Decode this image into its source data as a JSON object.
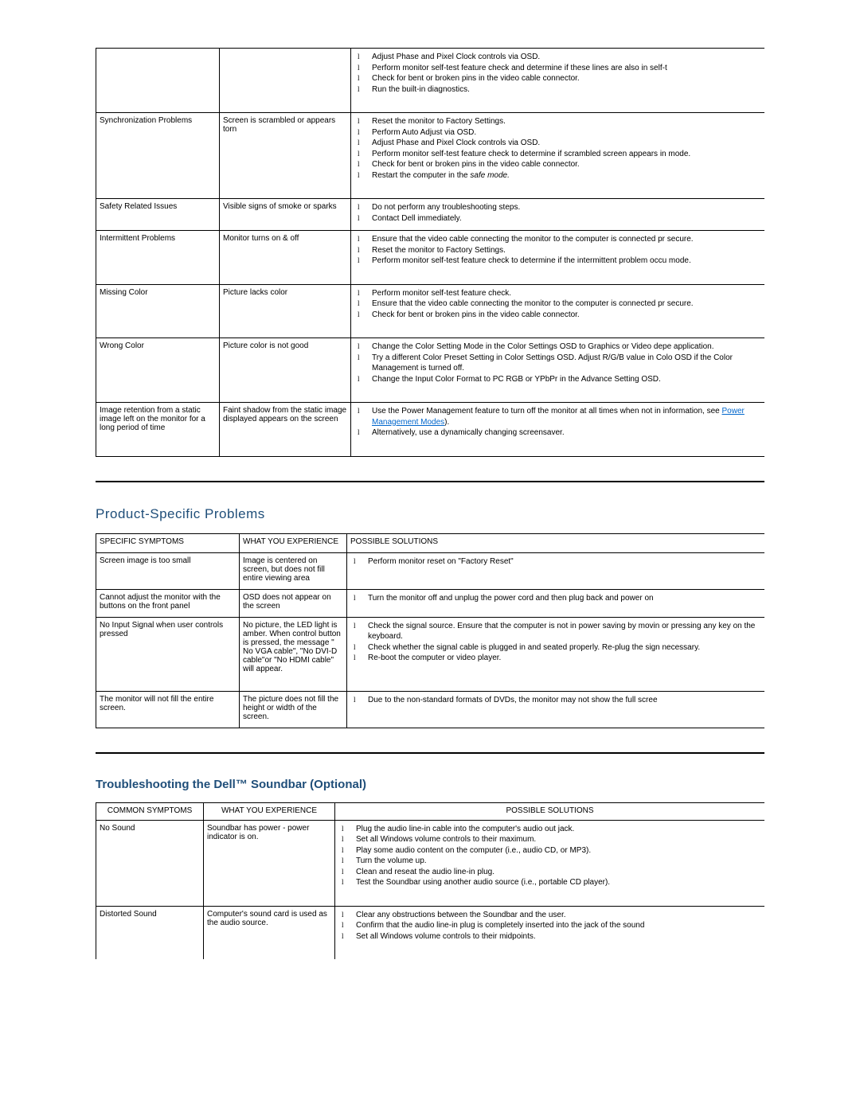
{
  "table1": {
    "col_widths": [
      "155px",
      "165px",
      "auto"
    ],
    "rows": [
      {
        "symptom": "",
        "experience": "",
        "solutions": [
          {
            "text": "Adjust Phase and Pixel Clock controls via OSD."
          },
          {
            "text": "Perform monitor self-test feature check and determine if these lines are also in self-t"
          },
          {
            "text": "Check for bent or broken pins in the video cable connector."
          },
          {
            "text": "Run the built-in diagnostics."
          }
        ]
      },
      {
        "symptom": "Synchronization Problems",
        "experience": "Screen is scrambled or appears torn",
        "solutions": [
          {
            "text": "Reset the monitor to Factory Settings."
          },
          {
            "text": "Perform Auto Adjust via OSD."
          },
          {
            "text": "Adjust Phase and Pixel Clock controls via OSD."
          },
          {
            "text": "Perform monitor self-test feature check to determine if scrambled screen appears in mode."
          },
          {
            "text": "Check for bent or broken pins in the video cable connector."
          },
          {
            "text_pre": "Restart the computer in the ",
            "text_italic": "safe mode.",
            "text_post": ""
          }
        ]
      },
      {
        "symptom": "Safety Related Issues",
        "experience": "Visible signs of smoke or sparks",
        "solutions": [
          {
            "text": "Do not perform any troubleshooting steps."
          },
          {
            "text": "Contact Dell immediately."
          }
        ],
        "short": true
      },
      {
        "symptom": "Intermittent Problems",
        "experience": "Monitor turns on & off",
        "solutions": [
          {
            "text": "Ensure that the video cable connecting the monitor to the computer is connected pr secure."
          },
          {
            "text": "Reset the monitor to Factory Settings."
          },
          {
            "text": "Perform monitor self-test feature check to determine if the intermittent problem occu mode."
          }
        ]
      },
      {
        "symptom": "Missing Color",
        "experience": "Picture lacks color",
        "solutions": [
          {
            "text": "Perform monitor self-test feature check."
          },
          {
            "text": "Ensure that the video cable connecting the monitor to the computer is connected pr secure."
          },
          {
            "text": "Check for bent or broken pins in the video cable connector."
          }
        ]
      },
      {
        "symptom": "Wrong Color",
        "experience": "Picture color is not good",
        "solutions": [
          {
            "text": "Change the Color Setting Mode in the Color Settings OSD to Graphics or Video depe application."
          },
          {
            "text": "Try a different Color Preset Setting in Color Settings OSD. Adjust R/G/B value in Colo OSD if the Color Management is turned off."
          },
          {
            "text": "Change the Input Color Format to PC RGB or YPbPr in the Advance Setting OSD."
          }
        ]
      },
      {
        "symptom": "Image retention from a static image left on the monitor for a long period of time",
        "experience": "Faint shadow from the static image displayed appears on the screen",
        "solutions": [
          {
            "text_pre": "Use the Power Management feature to turn off the monitor at all times when not in information, see ",
            "link": "Power Management Modes",
            "text_post": ")."
          },
          {
            "text": "Alternatively, use a dynamically changing screensaver."
          }
        ]
      }
    ]
  },
  "section2": {
    "title": "Product-Specific Problems",
    "headers": [
      "SPECIFIC SYMPTOMS",
      "WHAT YOU EXPERIENCE",
      "POSSIBLE SOLUTIONS"
    ],
    "rows": [
      {
        "symptom": "Screen image is too small",
        "experience": "Image is centered on screen, but does not fill entire viewing area",
        "solutions": [
          {
            "text": "Perform monitor reset on \"Factory Reset\""
          }
        ],
        "short": true
      },
      {
        "symptom": "Cannot adjust the monitor with the buttons on the front panel",
        "experience": "OSD does not appear on the screen",
        "solutions": [
          {
            "text": "Turn the monitor off and unplug the power cord and then plug back and power on"
          }
        ],
        "short": true
      },
      {
        "symptom": "No Input Signal when user controls pressed",
        "experience": "No picture, the LED light is amber. When control button is pressed, the message \" No VGA cable\", \"No DVI-D cable\"or \"No HDMI cable\" will appear.",
        "solutions": [
          {
            "text": "Check the signal source. Ensure that the computer is not in power saving by movin or pressing any key on the keyboard."
          },
          {
            "text": "Check whether the signal cable is plugged in and seated properly. Re-plug the sign necessary."
          },
          {
            "text": "Re-boot the computer or video player."
          }
        ]
      },
      {
        "symptom": "The monitor will not fill the entire screen.",
        "experience": "The picture does not fill the height or width of the screen.",
        "solutions": [
          {
            "text": "Due to the non-standard formats of DVDs, the monitor may not show the full scree"
          }
        ],
        "short": true
      }
    ]
  },
  "section3": {
    "title": "Troubleshooting the Dell™ Soundbar (Optional)",
    "headers": [
      "COMMON SYMPTOMS",
      "WHAT YOU EXPERIENCE",
      "POSSIBLE SOLUTIONS"
    ],
    "rows": [
      {
        "symptom": "No Sound",
        "experience": "Soundbar has power - power indicator is on.",
        "solutions": [
          {
            "text": "Plug the audio line-in cable into the computer's audio out jack."
          },
          {
            "text": "Set all Windows volume controls to their maximum."
          },
          {
            "text": "Play some audio content on the computer (i.e., audio CD, or MP3)."
          },
          {
            "text": "Turn the volume up."
          },
          {
            "text": "Clean and reseat the audio line-in plug."
          },
          {
            "text": "Test the Soundbar using another audio source (i.e., portable CD player)."
          }
        ]
      },
      {
        "symptom": "Distorted Sound",
        "experience": "Computer's sound card is used as the audio source.",
        "solutions": [
          {
            "text": "Clear any obstructions between the Soundbar and the user."
          },
          {
            "text": "Confirm that the audio line-in plug is completely inserted into the jack of the sound"
          },
          {
            "text": "Set all Windows volume controls to their midpoints."
          }
        ],
        "open_bottom": true
      }
    ]
  }
}
